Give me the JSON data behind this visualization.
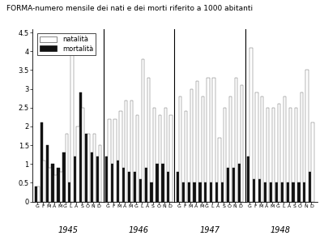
{
  "title": "FORMA-numero mensile dei nati e dei morti riferito a 1000 abitanti",
  "years": [
    "1945",
    "1946",
    "1947",
    "1948"
  ],
  "months": [
    "G",
    "F",
    "M",
    "A",
    "M",
    "G",
    "L",
    "A",
    "S",
    "O",
    "N",
    "D"
  ],
  "natalita": [
    [
      0.4,
      1.1,
      0.9,
      0.7,
      0.8,
      1.8,
      4.1,
      2.0,
      2.5,
      1.8,
      1.8,
      1.5
    ],
    [
      2.2,
      2.2,
      2.4,
      2.7,
      2.7,
      2.3,
      3.8,
      3.3,
      2.5,
      2.3,
      2.5,
      2.3
    ],
    [
      2.8,
      2.4,
      3.0,
      3.2,
      2.8,
      3.3,
      3.3,
      1.7,
      2.5,
      2.8,
      3.3,
      3.1
    ],
    [
      4.1,
      2.9,
      2.8,
      2.5,
      2.5,
      2.6,
      2.8,
      2.5,
      2.5,
      2.9,
      3.5,
      2.1
    ]
  ],
  "mortalita": [
    [
      0.4,
      2.1,
      1.5,
      1.0,
      0.9,
      1.3,
      0.5,
      1.2,
      2.9,
      1.8,
      1.3,
      1.2
    ],
    [
      1.2,
      1.0,
      1.1,
      0.9,
      0.8,
      0.8,
      0.6,
      0.9,
      0.5,
      1.0,
      1.0,
      0.8
    ],
    [
      0.8,
      0.5,
      0.5,
      0.5,
      0.5,
      0.5,
      0.5,
      0.5,
      0.5,
      0.9,
      0.9,
      1.0
    ],
    [
      1.2,
      0.6,
      0.6,
      0.5,
      0.5,
      0.5,
      0.5,
      0.5,
      0.5,
      0.5,
      0.5,
      0.8
    ]
  ],
  "ylim": [
    0,
    4.6
  ],
  "yticks": [
    0,
    0.5,
    1,
    1.5,
    2,
    2.5,
    3,
    3.5,
    4,
    4.5
  ],
  "ytick_labels": [
    "0",
    "0.5",
    "1",
    "1.5",
    "2",
    "2.5",
    "3",
    "3.5",
    "4",
    "4.5"
  ],
  "color_natalita": "#ffffff",
  "color_mortalita": "#111111",
  "background_color": "#ffffff",
  "title_fontsize": 6.5
}
